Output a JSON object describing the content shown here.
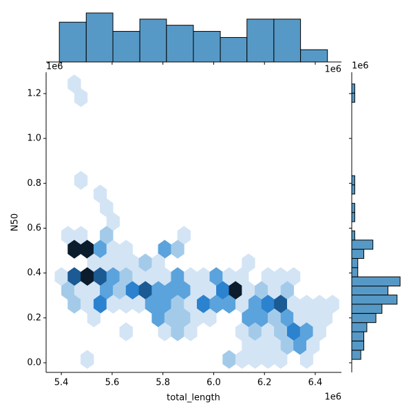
{
  "chart_data": [
    {
      "type": "hexbin",
      "x_label": "total_length",
      "y_label": "N50",
      "x_offset_label": "1e6",
      "y_offset_label": "1e6",
      "xlim": [
        5.34,
        6.503
      ],
      "ylim": [
        -0.043,
        1.295
      ],
      "xticks": [
        5.4,
        5.6,
        5.8,
        {
          "value": 6.0,
          "label": "6.0"
        },
        6.2,
        6.4
      ],
      "yticks": [
        {
          "value": 0.0,
          "label": "0.0"
        },
        0.2,
        0.4,
        0.6,
        0.8,
        {
          "value": 1.0,
          "label": "1.0"
        },
        1.2
      ],
      "colors": [
        "#d3e4f5",
        "#a3cbe9",
        "#5ba3dc",
        "#2b82cf",
        "#1b5a93",
        "#0b1c2c"
      ],
      "hexbins": {
        "x": [
          5.451,
          5.477,
          5.477,
          5.553,
          5.578,
          5.604,
          5.426,
          5.477,
          5.578,
          5.883,
          5.451,
          5.502,
          5.553,
          5.604,
          5.655,
          5.807,
          5.858,
          5.528,
          5.578,
          5.629,
          5.68,
          5.731,
          5.782,
          6.137,
          5.4,
          5.451,
          5.502,
          5.553,
          5.604,
          5.655,
          5.706,
          5.756,
          5.807,
          5.858,
          5.909,
          5.96,
          6.01,
          6.061,
          6.112,
          6.214,
          6.264,
          6.315,
          5.426,
          5.477,
          5.528,
          5.578,
          5.629,
          5.68,
          5.731,
          5.782,
          5.832,
          5.883,
          5.934,
          5.985,
          6.036,
          6.086,
          6.137,
          6.188,
          6.239,
          6.29,
          5.451,
          5.502,
          5.553,
          5.604,
          5.655,
          5.706,
          5.756,
          5.807,
          5.858,
          5.909,
          5.96,
          6.01,
          6.061,
          6.112,
          6.163,
          6.214,
          6.264,
          6.315,
          6.366,
          6.417,
          6.468,
          5.528,
          5.782,
          5.832,
          5.883,
          5.934,
          5.985,
          6.137,
          6.188,
          6.239,
          6.29,
          6.34,
          6.391,
          6.442,
          5.655,
          5.807,
          5.858,
          5.909,
          6.112,
          6.163,
          6.214,
          6.264,
          6.315,
          6.366,
          6.417,
          6.137,
          6.188,
          6.239,
          6.29,
          6.34,
          6.391,
          5.502,
          6.061,
          6.112,
          6.163,
          6.214,
          6.264,
          6.366
        ],
        "y": [
          1.243,
          1.182,
          0.813,
          0.752,
          0.691,
          0.629,
          0.568,
          0.568,
          0.568,
          0.568,
          0.506,
          0.506,
          0.506,
          0.506,
          0.506,
          0.506,
          0.506,
          0.445,
          0.445,
          0.445,
          0.445,
          0.445,
          0.445,
          0.445,
          0.384,
          0.384,
          0.384,
          0.384,
          0.384,
          0.384,
          0.384,
          0.384,
          0.384,
          0.384,
          0.384,
          0.384,
          0.384,
          0.384,
          0.384,
          0.384,
          0.384,
          0.384,
          0.322,
          0.322,
          0.322,
          0.322,
          0.322,
          0.322,
          0.322,
          0.322,
          0.322,
          0.322,
          0.322,
          0.322,
          0.322,
          0.322,
          0.322,
          0.322,
          0.322,
          0.322,
          0.261,
          0.261,
          0.261,
          0.261,
          0.261,
          0.261,
          0.261,
          0.261,
          0.261,
          0.261,
          0.261,
          0.261,
          0.261,
          0.261,
          0.261,
          0.261,
          0.261,
          0.261,
          0.261,
          0.261,
          0.261,
          0.2,
          0.2,
          0.2,
          0.2,
          0.2,
          0.2,
          0.2,
          0.2,
          0.2,
          0.2,
          0.2,
          0.2,
          0.2,
          0.138,
          0.138,
          0.138,
          0.138,
          0.138,
          0.138,
          0.138,
          0.138,
          0.138,
          0.138,
          0.138,
          0.077,
          0.077,
          0.077,
          0.077,
          0.077,
          0.077,
          0.015,
          0.015,
          0.015,
          0.015,
          0.015,
          0.015,
          0.015
        ],
        "counts": [
          1,
          1,
          1,
          1,
          1,
          1,
          1,
          1,
          2,
          1,
          6,
          6,
          3,
          1,
          1,
          3,
          2,
          1,
          1,
          1,
          1,
          2,
          1,
          1,
          1,
          5,
          6,
          5,
          3,
          2,
          1,
          1,
          1,
          3,
          1,
          1,
          3,
          1,
          1,
          1,
          1,
          1,
          2,
          1,
          1,
          3,
          2,
          4,
          5,
          3,
          3,
          3,
          1,
          1,
          4,
          6,
          1,
          2,
          1,
          2,
          2,
          1,
          4,
          1,
          1,
          1,
          3,
          3,
          2,
          1,
          4,
          3,
          3,
          1,
          3,
          4,
          5,
          1,
          1,
          1,
          1,
          1,
          3,
          2,
          2,
          1,
          1,
          3,
          3,
          2,
          3,
          1,
          1,
          1,
          1,
          1,
          2,
          1,
          1,
          2,
          1,
          2,
          4,
          3,
          1,
          1,
          1,
          1,
          2,
          3,
          1,
          1,
          2,
          1,
          1,
          1,
          1,
          1
        ]
      }
    },
    {
      "type": "histogram",
      "orientation": "vertical",
      "x_offset_label": "1e6",
      "color": "#5799c6",
      "bins": [
        5.392,
        5.498,
        5.603,
        5.709,
        5.814,
        5.92,
        6.026,
        6.131,
        6.237,
        6.342,
        6.448
      ],
      "values": [
        13,
        16,
        10,
        14,
        12,
        10,
        8,
        14,
        14,
        4
      ],
      "ylim": [
        0,
        18
      ]
    },
    {
      "type": "histogram",
      "orientation": "horizontal",
      "y_offset_label": "1e6",
      "color": "#5799c6",
      "bins": [
        0.015,
        0.056,
        0.097,
        0.138,
        0.179,
        0.22,
        0.261,
        0.302,
        0.342,
        0.383,
        0.424,
        0.465,
        0.506,
        0.547,
        0.588,
        0.629,
        0.67,
        0.711,
        0.752,
        0.793,
        0.834,
        0.875,
        0.916,
        0.956,
        0.997,
        1.038,
        1.079,
        1.12,
        1.161,
        1.202,
        1.243
      ],
      "values": [
        3,
        4,
        4,
        5,
        8,
        10,
        15,
        12,
        16,
        2,
        2,
        4,
        7,
        1,
        0,
        1,
        1,
        0,
        1,
        1,
        0,
        0,
        0,
        0,
        0,
        0,
        0,
        0,
        1,
        1
      ],
      "xlim": [
        0,
        18
      ]
    }
  ]
}
